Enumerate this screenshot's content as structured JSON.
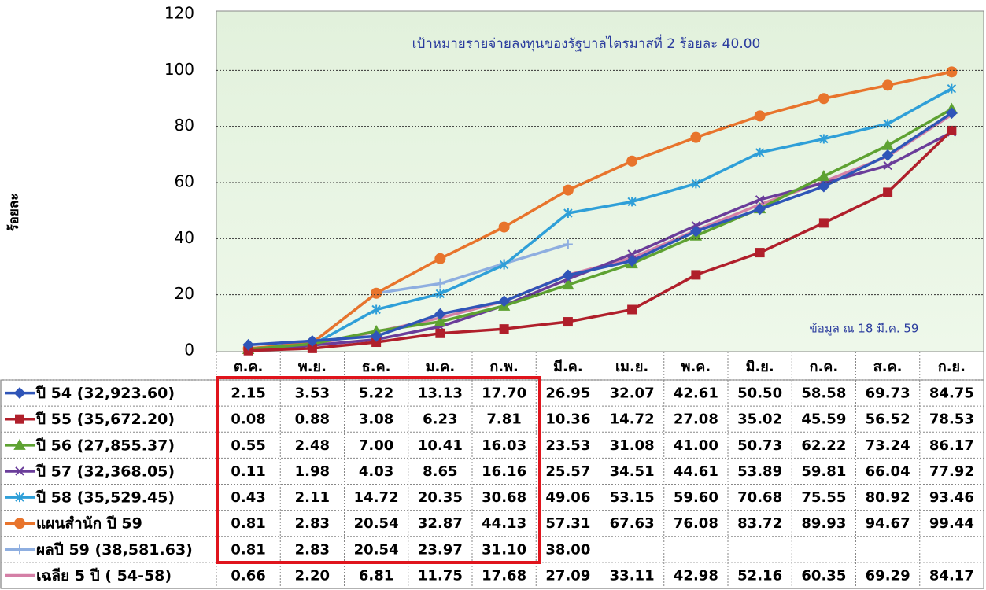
{
  "chart_data": {
    "type": "line",
    "annotations": [
      "เป้าหมายรายจ่ายลงทุนของรัฐบาลไตรมาสที่ 2  ร้อยละ  40.00",
      "ข้อมูล ณ  18  มี.ค. 59"
    ],
    "ylabel": "ร้อยละ",
    "categories": [
      "ต.ค.",
      "พ.ย.",
      "ธ.ค.",
      "ม.ค.",
      "ก.พ.",
      "มี.ค.",
      "เม.ย.",
      "พ.ค.",
      "มิ.ย.",
      "ก.ค.",
      "ส.ค.",
      "ก.ย."
    ],
    "ylim": [
      0,
      120
    ],
    "yticks": [
      0,
      20,
      40,
      60,
      80,
      100,
      120
    ],
    "grid": true,
    "series": [
      {
        "name": "ปี 54 (32,923.60)",
        "color": "#2f55b8",
        "marker": "diamond",
        "values": [
          2.15,
          3.53,
          5.22,
          13.13,
          17.7,
          26.95,
          32.07,
          42.61,
          50.5,
          58.58,
          69.73,
          84.75
        ],
        "value_labels": [
          "2.15",
          "3.53",
          "5.22",
          "13.13",
          "17.70",
          "26.95",
          "32.07",
          "42.61",
          "50.50",
          "58.58",
          "69.73",
          "84.75"
        ]
      },
      {
        "name": "ปี 55 (35,672.20)",
        "color": "#b01f2b",
        "marker": "square",
        "values": [
          0.08,
          0.88,
          3.08,
          6.23,
          7.81,
          10.36,
          14.72,
          27.08,
          35.02,
          45.59,
          56.52,
          78.53
        ],
        "value_labels": [
          "0.08",
          "0.88",
          "3.08",
          "6.23",
          "7.81",
          "10.36",
          "14.72",
          "27.08",
          "35.02",
          "45.59",
          "56.52",
          "78.53"
        ]
      },
      {
        "name": "ปี 56 (27,855.37)",
        "color": "#5ea232",
        "marker": "triangle",
        "values": [
          0.55,
          2.48,
          7.0,
          10.41,
          16.03,
          23.53,
          31.08,
          41.0,
          50.73,
          62.22,
          73.24,
          86.17
        ],
        "value_labels": [
          "0.55",
          "2.48",
          "7.00",
          "10.41",
          "16.03",
          "23.53",
          "31.08",
          "41.00",
          "50.73",
          "62.22",
          "73.24",
          "86.17"
        ]
      },
      {
        "name": "ปี 57 (32,368.05)",
        "color": "#6a3d9a",
        "marker": "x",
        "values": [
          0.11,
          1.98,
          4.03,
          8.65,
          16.16,
          25.57,
          34.51,
          44.61,
          53.89,
          59.81,
          66.04,
          77.92
        ],
        "value_labels": [
          "0.11",
          "1.98",
          "4.03",
          "8.65",
          "16.16",
          "25.57",
          "34.51",
          "44.61",
          "53.89",
          "59.81",
          "66.04",
          "77.92"
        ]
      },
      {
        "name": "ปี 58 (35,529.45)",
        "color": "#2f9fd8",
        "marker": "asterisk",
        "values": [
          0.43,
          2.11,
          14.72,
          20.35,
          30.68,
          49.06,
          53.15,
          59.6,
          70.68,
          75.55,
          80.92,
          93.46
        ],
        "value_labels": [
          "0.43",
          "2.11",
          "14.72",
          "20.35",
          "30.68",
          "49.06",
          "53.15",
          "59.60",
          "70.68",
          "75.55",
          "80.92",
          "93.46"
        ]
      },
      {
        "name": "แผนสำนัก ปี 59",
        "color": "#e8742c",
        "marker": "circle",
        "values": [
          0.81,
          2.83,
          20.54,
          32.87,
          44.13,
          57.31,
          67.63,
          76.08,
          83.72,
          89.93,
          94.67,
          99.44
        ],
        "value_labels": [
          "0.81",
          "2.83",
          "20.54",
          "32.87",
          "44.13",
          "57.31",
          "67.63",
          "76.08",
          "83.72",
          "89.93",
          "94.67",
          "99.44"
        ]
      },
      {
        "name": "ผลปี 59 (38,581.63)",
        "color": "#8eaee0",
        "marker": "plus",
        "values": [
          0.81,
          2.83,
          20.54,
          23.97,
          31.1,
          38.0,
          null,
          null,
          null,
          null,
          null,
          null
        ],
        "value_labels": [
          "0.81",
          "2.83",
          "20.54",
          "23.97",
          "31.10",
          "38.00",
          null,
          null,
          null,
          null,
          null,
          null
        ]
      },
      {
        "name": "เฉลีย 5  ปี  ( 54-58)",
        "color": "#d47fa6",
        "marker": "none",
        "values": [
          0.66,
          2.2,
          6.81,
          11.75,
          17.68,
          27.09,
          33.11,
          42.98,
          52.16,
          60.35,
          69.29,
          84.17
        ],
        "value_labels": [
          "0.66",
          "2.20",
          "6.81",
          "11.75",
          "17.68",
          "27.09",
          "33.11",
          "42.98",
          "52.16",
          "60.35",
          "69.29",
          "84.17"
        ]
      }
    ]
  }
}
